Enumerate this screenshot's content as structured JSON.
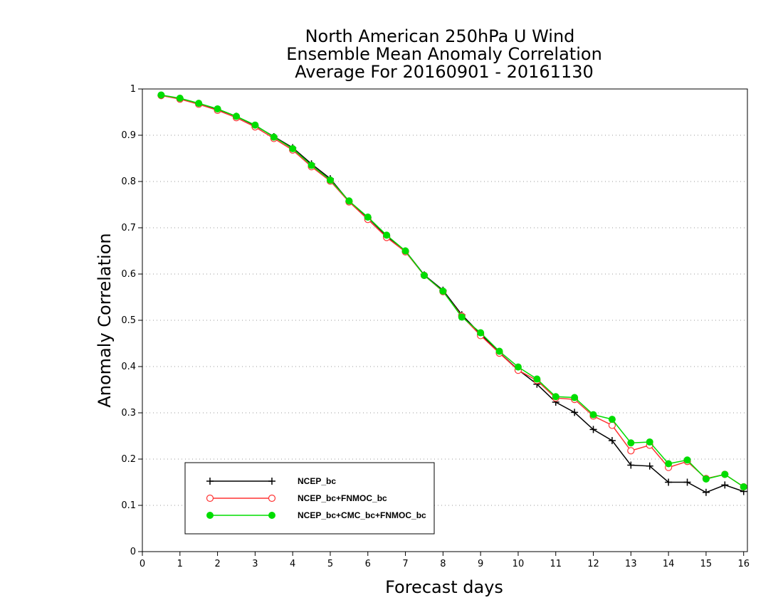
{
  "chart_data": {
    "type": "line",
    "title_lines": [
      "North American 250hPa U Wind",
      "Ensemble Mean Anomaly Correlation",
      "Average For 20160901 - 20161130"
    ],
    "xlabel": "Forecast days",
    "ylabel": "Anomaly Correlation",
    "xlim": [
      0,
      16.1
    ],
    "ylim": [
      0,
      1
    ],
    "x_ticks": [
      "0",
      "1",
      "2",
      "3",
      "4",
      "5",
      "6",
      "7",
      "8",
      "9",
      "10",
      "11",
      "12",
      "13",
      "14",
      "15",
      "16"
    ],
    "y_ticks": [
      "0",
      "0.1",
      "0.2",
      "0.3",
      "0.4",
      "0.5",
      "0.6",
      "0.7",
      "0.8",
      "0.9",
      "1"
    ],
    "grid": "horizontal dotted",
    "legend_position": "lower-left",
    "x": [
      0.5,
      1,
      1.5,
      2,
      2.5,
      3,
      3.5,
      4,
      4.5,
      5,
      5.5,
      6,
      6.5,
      7,
      7.5,
      8,
      8.5,
      9,
      9.5,
      10,
      10.5,
      11,
      11.5,
      12,
      12.5,
      13,
      13.5,
      14,
      14.5,
      15,
      15.5,
      16
    ],
    "series": [
      {
        "name": "NCEP_bc",
        "color": "#000000",
        "marker": "plus",
        "values": [
          0.986,
          0.979,
          0.968,
          0.956,
          0.941,
          0.921,
          0.897,
          0.873,
          0.838,
          0.806,
          0.757,
          0.722,
          0.682,
          0.65,
          0.598,
          0.565,
          0.512,
          0.47,
          0.43,
          0.393,
          0.362,
          0.323,
          0.301,
          0.264,
          0.24,
          0.187,
          0.185,
          0.15,
          0.15,
          0.128,
          0.144,
          0.13
        ]
      },
      {
        "name": "NCEP_bc+FNMOC_bc",
        "color": "#ff3333",
        "marker": "open-circle",
        "values": [
          0.986,
          0.978,
          0.967,
          0.954,
          0.938,
          0.918,
          0.893,
          0.868,
          0.832,
          0.801,
          0.756,
          0.718,
          0.679,
          0.648,
          0.597,
          0.562,
          0.509,
          0.467,
          0.429,
          0.392,
          0.37,
          0.332,
          0.329,
          0.293,
          0.273,
          0.218,
          0.23,
          0.182,
          0.195,
          0.158,
          0.167,
          0.14
        ]
      },
      {
        "name": "NCEP_bc+CMC_bc+FNMOC_bc",
        "color": "#00dd00",
        "marker": "filled-circle",
        "values": [
          0.987,
          0.98,
          0.969,
          0.957,
          0.941,
          0.922,
          0.896,
          0.871,
          0.835,
          0.803,
          0.758,
          0.723,
          0.684,
          0.65,
          0.597,
          0.563,
          0.507,
          0.473,
          0.433,
          0.399,
          0.373,
          0.335,
          0.333,
          0.296,
          0.286,
          0.235,
          0.237,
          0.19,
          0.198,
          0.157,
          0.167,
          0.14
        ]
      }
    ]
  }
}
